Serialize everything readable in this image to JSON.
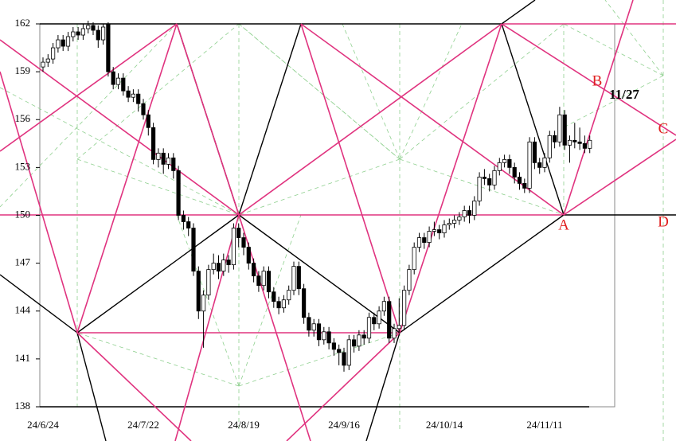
{
  "chart_data": {
    "type": "candlestick",
    "categories": [
      "24/6/24",
      null,
      null,
      null,
      null,
      null,
      null,
      null,
      null,
      null,
      null,
      null,
      null,
      null,
      null,
      null,
      null,
      null,
      null,
      null,
      "24/7/22",
      null,
      null,
      null,
      null,
      null,
      null,
      null,
      null,
      null,
      null,
      null,
      null,
      null,
      null,
      null,
      null,
      null,
      null,
      null,
      "24/8/19",
      null,
      null,
      null,
      null,
      null,
      null,
      null,
      null,
      null,
      null,
      null,
      null,
      null,
      null,
      null,
      null,
      null,
      null,
      null,
      "24/9/16",
      null,
      null,
      null,
      null,
      null,
      null,
      null,
      null,
      null,
      null,
      null,
      null,
      null,
      null,
      null,
      null,
      null,
      null,
      null,
      "24/10/14",
      null,
      null,
      null,
      null,
      null,
      null,
      null,
      null,
      null,
      null,
      null,
      null,
      null,
      null,
      null,
      null,
      null,
      null,
      null,
      "24/11/11",
      null,
      null,
      null,
      null,
      null,
      null,
      null,
      null,
      null
    ],
    "open": [
      159.3,
      159.6,
      159.8,
      160.5,
      161.0,
      160.6,
      161.2,
      161.5,
      161.3,
      161.7,
      161.9,
      161.6,
      161.0,
      162.0,
      159.0,
      158.2,
      158.6,
      157.8,
      157.4,
      157.6,
      157.0,
      156.3,
      155.5,
      153.5,
      153.9,
      153.2,
      153.6,
      152.8,
      150.0,
      149.6,
      149.2,
      146.5,
      144.0,
      145.0,
      146.6,
      147.0,
      146.5,
      147.2,
      146.9,
      149.2,
      148.6,
      148.0,
      147.0,
      146.2,
      145.6,
      146.5,
      145.2,
      144.6,
      144.2,
      144.7,
      145.3,
      146.8,
      145.4,
      143.6,
      142.8,
      143.2,
      142.2,
      142.7,
      142.0,
      141.6,
      141.4,
      140.6,
      142.2,
      141.8,
      142.5,
      142.3,
      143.6,
      143.2,
      144.0,
      144.6,
      142.3,
      142.9,
      143.1,
      145.3,
      146.6,
      148.0,
      148.6,
      148.3,
      149.0,
      149.1,
      148.9,
      149.4,
      149.5,
      149.7,
      149.9,
      150.3,
      150.0,
      150.9,
      152.4,
      152.3,
      151.9,
      152.8,
      153.3,
      153.5,
      153.0,
      152.4,
      152.0,
      151.7,
      154.6,
      153.3,
      153.0,
      153.6,
      155.0,
      154.6,
      156.3,
      154.4,
      154.7,
      154.6,
      154.5,
      154.2
    ],
    "high": [
      159.9,
      160.1,
      160.8,
      161.3,
      161.3,
      161.5,
      161.8,
      161.8,
      162.0,
      162.2,
      162.1,
      161.9,
      162.0,
      162.1,
      159.3,
      158.9,
      158.9,
      158.1,
      157.9,
      157.9,
      157.3,
      156.6,
      155.8,
      154.2,
      154.2,
      153.9,
      153.9,
      153.1,
      150.3,
      149.9,
      149.5,
      146.8,
      145.3,
      146.9,
      147.6,
      147.5,
      147.6,
      147.5,
      149.5,
      149.5,
      148.9,
      148.3,
      147.3,
      146.5,
      146.8,
      146.8,
      145.5,
      144.9,
      145.0,
      145.6,
      147.1,
      147.1,
      145.7,
      143.9,
      143.5,
      143.5,
      143.0,
      143.0,
      142.3,
      141.9,
      141.7,
      142.5,
      142.5,
      142.8,
      142.8,
      143.9,
      143.9,
      144.3,
      144.9,
      144.9,
      143.2,
      144.8,
      145.6,
      146.9,
      148.3,
      148.9,
      148.9,
      149.3,
      149.6,
      149.4,
      149.7,
      149.8,
      150.0,
      150.2,
      150.6,
      150.6,
      151.2,
      152.7,
      152.9,
      152.6,
      153.1,
      153.6,
      153.8,
      153.8,
      153.3,
      152.7,
      152.3,
      154.9,
      154.9,
      153.6,
      153.9,
      155.3,
      155.3,
      156.8,
      156.6,
      155.0,
      155.8,
      155.5,
      155.0,
      155.0
    ],
    "low": [
      159.0,
      159.3,
      159.5,
      160.2,
      160.3,
      160.3,
      160.9,
      161.0,
      161.0,
      161.4,
      161.3,
      160.5,
      160.7,
      158.7,
      157.9,
      157.9,
      157.5,
      157.1,
      157.1,
      156.5,
      156.0,
      155.0,
      153.2,
      153.0,
      152.6,
      152.9,
      152.3,
      149.7,
      149.1,
      148.7,
      146.2,
      143.5,
      141.7,
      144.7,
      146.3,
      146.0,
      146.2,
      146.4,
      146.6,
      148.0,
      147.5,
      146.6,
      145.8,
      145.2,
      145.3,
      144.8,
      144.2,
      143.8,
      143.9,
      144.4,
      145.0,
      145.0,
      143.2,
      142.4,
      142.4,
      141.8,
      141.9,
      141.6,
      141.2,
      140.6,
      140.2,
      140.3,
      141.4,
      141.5,
      141.9,
      142.0,
      142.8,
      142.9,
      143.7,
      142.0,
      142.0,
      142.6,
      142.8,
      145.0,
      146.3,
      147.7,
      147.9,
      148.0,
      148.7,
      148.5,
      148.6,
      149.1,
      149.2,
      149.4,
      149.6,
      149.5,
      149.7,
      150.6,
      151.9,
      151.5,
      151.6,
      152.5,
      153.0,
      152.6,
      152.0,
      151.6,
      151.4,
      151.4,
      152.9,
      152.6,
      152.7,
      153.3,
      154.2,
      154.3,
      154.1,
      153.3,
      154.2,
      154.1,
      153.9,
      153.9
    ],
    "close": [
      159.6,
      159.8,
      160.5,
      161.0,
      160.6,
      161.2,
      161.5,
      161.3,
      161.7,
      161.9,
      161.6,
      161.0,
      161.8,
      159.0,
      158.2,
      158.6,
      157.8,
      157.4,
      157.6,
      157.0,
      156.3,
      155.5,
      153.5,
      153.9,
      153.2,
      153.6,
      152.8,
      150.0,
      149.6,
      149.2,
      146.5,
      144.0,
      145.0,
      146.6,
      147.0,
      146.5,
      147.2,
      146.9,
      149.2,
      148.6,
      148.0,
      147.0,
      146.2,
      145.6,
      146.5,
      145.2,
      144.6,
      144.2,
      144.7,
      145.3,
      146.8,
      145.4,
      143.6,
      142.8,
      143.2,
      142.2,
      142.7,
      142.0,
      141.6,
      141.4,
      140.6,
      142.2,
      141.8,
      142.5,
      142.3,
      143.6,
      143.2,
      144.0,
      144.6,
      142.3,
      142.9,
      143.1,
      145.3,
      146.6,
      148.0,
      148.6,
      148.3,
      149.0,
      149.1,
      148.9,
      149.4,
      149.5,
      149.7,
      149.9,
      150.3,
      150.0,
      150.9,
      152.4,
      152.3,
      151.9,
      152.8,
      153.3,
      153.5,
      153.0,
      152.4,
      152.0,
      151.7,
      154.6,
      153.3,
      153.0,
      153.6,
      155.0,
      154.6,
      156.3,
      154.4,
      154.7,
      154.6,
      154.5,
      154.2,
      154.7
    ],
    "up_color": "#ffffff",
    "down_color": "#000000",
    "ylim": [
      138,
      162
    ],
    "yticks": [
      138,
      141,
      144,
      147,
      150,
      153,
      156,
      159,
      162
    ],
    "annotations": [
      "A",
      "B",
      "C",
      "D",
      "11/27"
    ]
  }
}
